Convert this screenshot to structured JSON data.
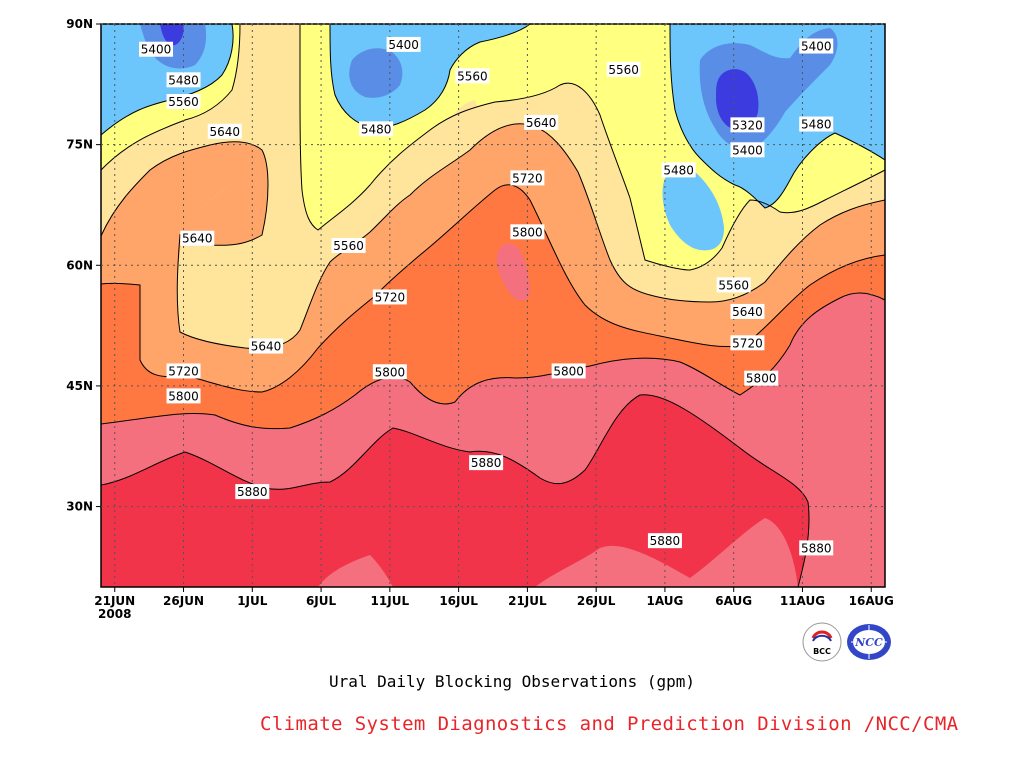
{
  "chart_data": {
    "type": "contour",
    "title": "Ural Daily Blocking Observations (gpm)",
    "x_tick_labels": [
      "21JUN",
      "26JUN",
      "1JUL",
      "6JUL",
      "11JUL",
      "16JUL",
      "21JUL",
      "26JUL",
      "1AUG",
      "6AUG",
      "11AUG",
      "16AUG"
    ],
    "x_year_label": "2008",
    "x_range": [
      "2008-06-20",
      "2008-08-16"
    ],
    "y_tick_labels": [
      "30N",
      "45N",
      "60N",
      "75N",
      "90N"
    ],
    "y_range_deg": [
      20,
      90
    ],
    "levels": [
      5320,
      5400,
      5480,
      5560,
      5640,
      5720,
      5800,
      5880
    ],
    "level_colors": {
      "below_5320": "#3b3be0",
      "5320_5400": "#5a8ee6",
      "5400_5480": "#6cc6fb",
      "5480_5560": "#ffff80",
      "5560_5640": "#ffe59c",
      "5640_5720": "#ffa56a",
      "5720_5800": "#ff7842",
      "5800_5880": "#f5707e",
      "above_5880": "#f2344a"
    },
    "contour_labels": [
      {
        "text": "5400",
        "date": "2008-06-24",
        "lat": 86.8
      },
      {
        "text": "5480",
        "date": "2008-06-26",
        "lat": 83.0
      },
      {
        "text": "5560",
        "date": "2008-06-26",
        "lat": 80.3
      },
      {
        "text": "5640",
        "date": "2008-06-29",
        "lat": 76.6
      },
      {
        "text": "5640",
        "date": "2008-06-27",
        "lat": 63.3
      },
      {
        "text": "5640",
        "date": "2008-07-02",
        "lat": 49.9
      },
      {
        "text": "5720",
        "date": "2008-06-26",
        "lat": 46.8
      },
      {
        "text": "5800",
        "date": "2008-06-26",
        "lat": 43.7
      },
      {
        "text": "5880",
        "date": "2008-07-01",
        "lat": 31.8
      },
      {
        "text": "5400",
        "date": "2008-07-12",
        "lat": 87.4
      },
      {
        "text": "5480",
        "date": "2008-07-10",
        "lat": 76.9
      },
      {
        "text": "5560",
        "date": "2008-07-08",
        "lat": 62.4
      },
      {
        "text": "5560",
        "date": "2008-07-17",
        "lat": 83.5
      },
      {
        "text": "5720",
        "date": "2008-07-11",
        "lat": 56.0
      },
      {
        "text": "5800",
        "date": "2008-07-11",
        "lat": 46.7
      },
      {
        "text": "5880",
        "date": "2008-07-18",
        "lat": 35.4
      },
      {
        "text": "5560",
        "date": "2008-07-28",
        "lat": 84.3
      },
      {
        "text": "5640",
        "date": "2008-07-22",
        "lat": 77.7
      },
      {
        "text": "5720",
        "date": "2008-07-21",
        "lat": 70.8
      },
      {
        "text": "5800",
        "date": "2008-07-21",
        "lat": 64.1
      },
      {
        "text": "5800",
        "date": "2008-07-24",
        "lat": 46.8
      },
      {
        "text": "5880",
        "date": "2008-07-31",
        "lat": 25.7
      },
      {
        "text": "5480",
        "date": "2008-08-01",
        "lat": 71.8
      },
      {
        "text": "5320",
        "date": "2008-08-06",
        "lat": 77.4
      },
      {
        "text": "5400",
        "date": "2008-08-06",
        "lat": 74.3
      },
      {
        "text": "5400",
        "date": "2008-08-11",
        "lat": 87.2
      },
      {
        "text": "5480",
        "date": "2008-08-11",
        "lat": 77.5
      },
      {
        "text": "5560",
        "date": "2008-08-05",
        "lat": 57.5
      },
      {
        "text": "5640",
        "date": "2008-08-06",
        "lat": 54.2
      },
      {
        "text": "5720",
        "date": "2008-08-06",
        "lat": 50.3
      },
      {
        "text": "5800",
        "date": "2008-08-07",
        "lat": 45.9
      },
      {
        "text": "5880",
        "date": "2008-08-11",
        "lat": 24.8
      }
    ]
  },
  "footer": {
    "credit": "Climate System Diagnostics and Prediction Division /NCC/CMA",
    "logo_left_icon": "bcc-logo-icon",
    "logo_left_text": "BCC",
    "logo_right_icon": "ncc-logo-icon",
    "logo_right_text": "NCC"
  }
}
